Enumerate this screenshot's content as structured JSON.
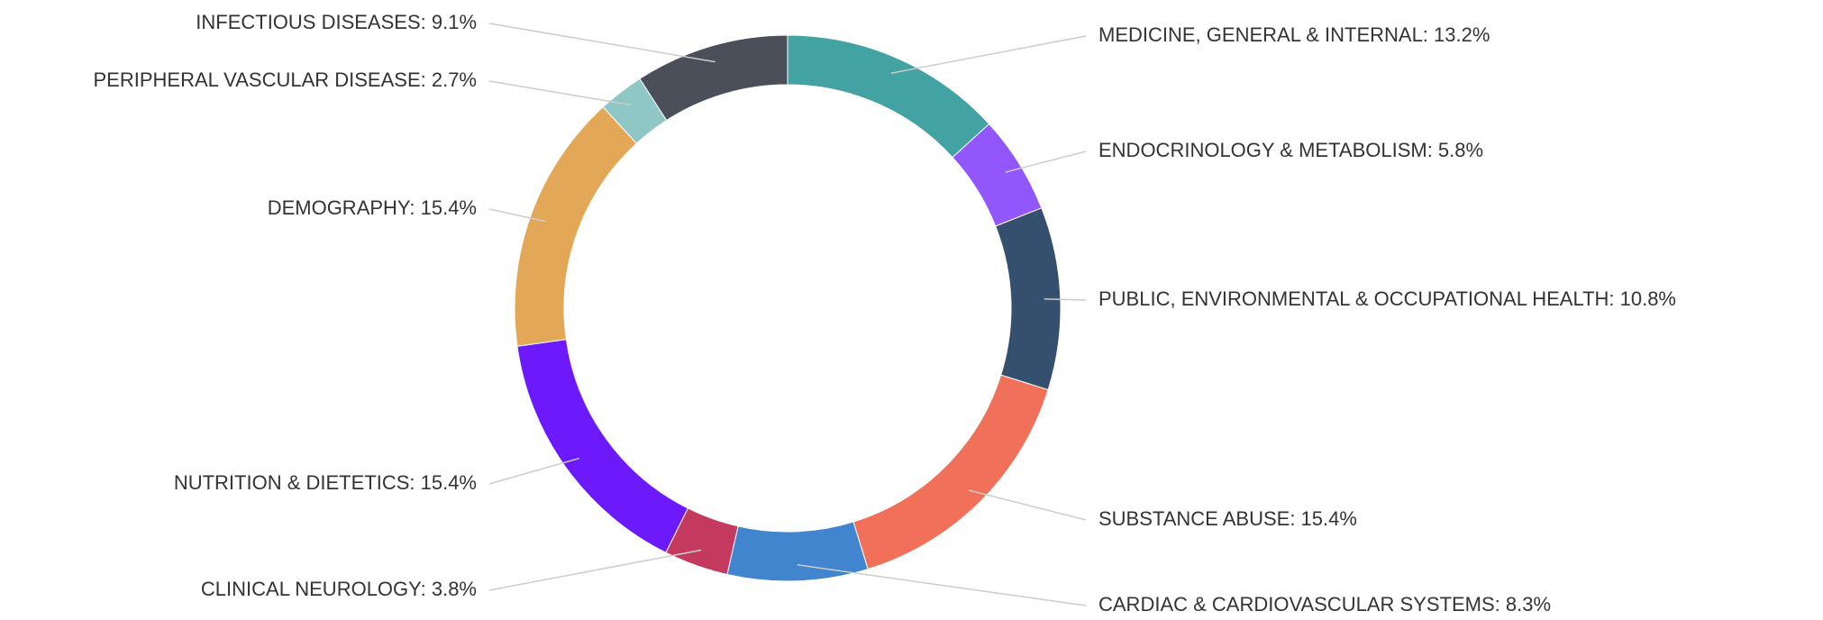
{
  "chart_data": {
    "type": "donut",
    "values": [
      13.2,
      5.8,
      10.8,
      15.4,
      8.3,
      3.8,
      15.4,
      15.4,
      2.7,
      9.1
    ],
    "value_labels": [
      "MEDICINE, GENERAL & INTERNAL: 13.2%",
      "ENDOCRINOLOGY & METABOLISM: 5.8%",
      "PUBLIC, ENVIRONMENTAL & OCCUPATIONAL HEALTH: 10.8%",
      "SUBSTANCE ABUSE: 15.4%",
      "CARDIAC & CARDIOVASCULAR SYSTEMS: 8.3%",
      "CLINICAL NEUROLOGY: 3.8%",
      "NUTRITION & DIETETICS: 15.4%",
      "DEMOGRAPHY: 15.4%",
      "PERIPHERAL VASCULAR DISEASE: 2.7%",
      "INFECTIOUS DISEASES: 9.1%"
    ],
    "colors": [
      "#43a2a2",
      "#9157fa",
      "#34506e",
      "#f0705a",
      "#4285cf",
      "#c43a5e",
      "#6c1afc",
      "#e3a857",
      "#8fc7c7",
      "#4a4f5a"
    ]
  }
}
